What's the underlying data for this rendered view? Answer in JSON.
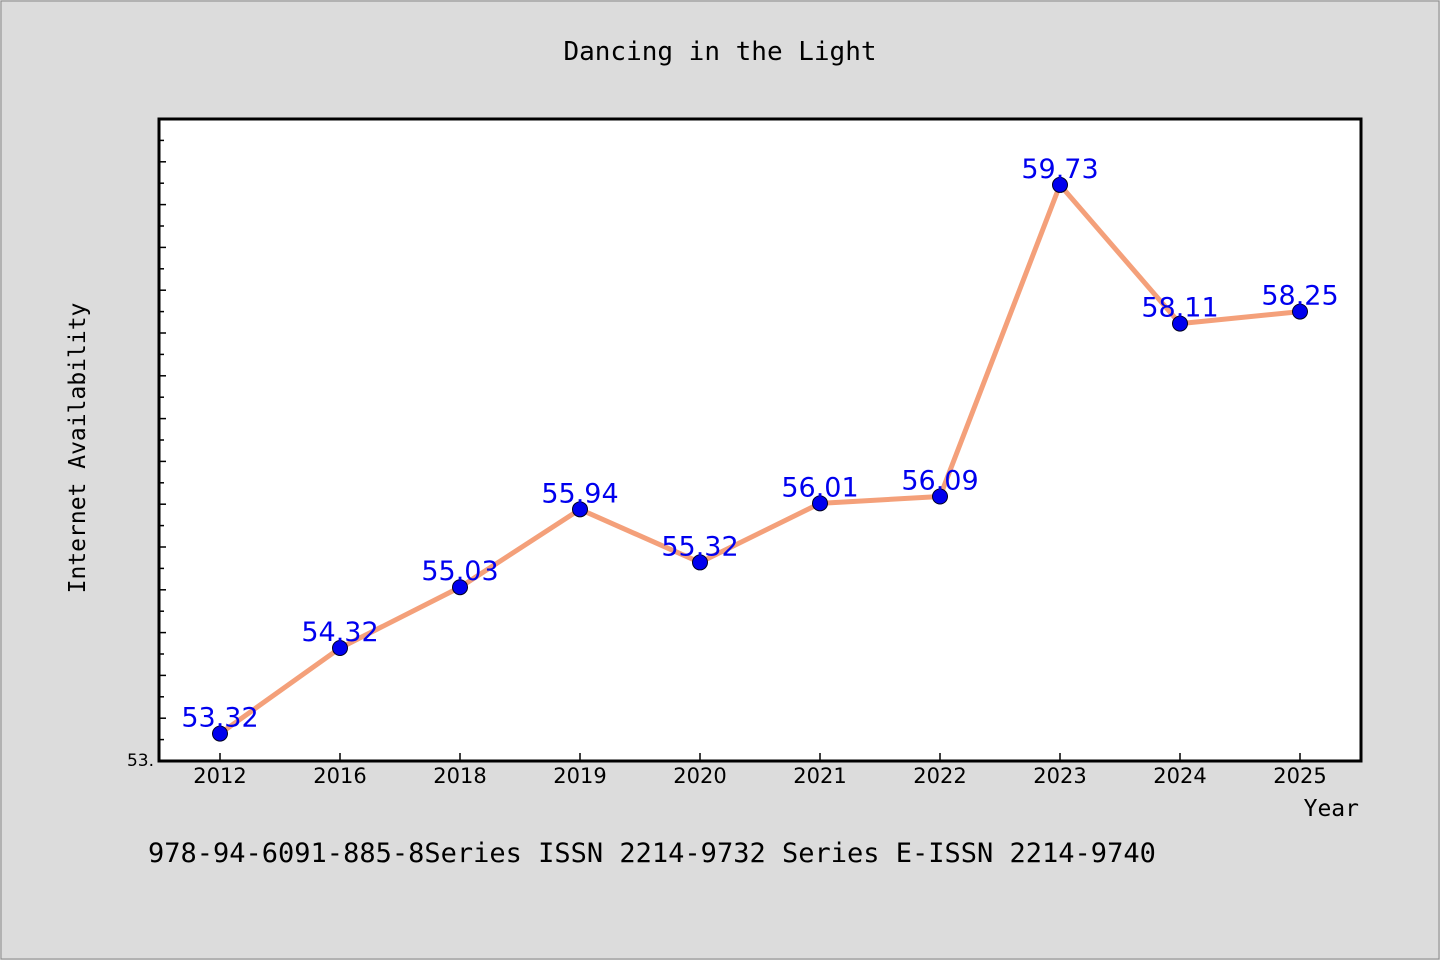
{
  "chart_data": {
    "type": "line",
    "title": "Dancing in the Light",
    "xlabel": "Year",
    "ylabel": "Internet Availability",
    "categories": [
      "2012",
      "2016",
      "2018",
      "2019",
      "2020",
      "2021",
      "2022",
      "2023",
      "2024",
      "2025"
    ],
    "series": [
      {
        "values": [
          53.32,
          54.32,
          55.03,
          55.94,
          55.32,
          56.01,
          56.09,
          59.73,
          58.11,
          58.25
        ],
        "labels": [
          "53.32",
          "54.32",
          "55.03",
          "55.94",
          "55.32",
          "56.01",
          "56.09",
          "59.73",
          "58.11",
          "58.25"
        ]
      }
    ],
    "ylim": [
      53.0,
      60.5
    ],
    "ytick_label": "53.",
    "grid": false,
    "legend": "none",
    "colors": {
      "line": "#f4a07a",
      "marker": "#0000ee",
      "label": "#0000ee",
      "frame": "#000000",
      "plot_bg": "#ffffff",
      "page_bg": "#dcdcdc"
    }
  },
  "footer_text": "978-94-6091-885-8Series ISSN 2214-9732 Series E-ISSN 2214-9740"
}
